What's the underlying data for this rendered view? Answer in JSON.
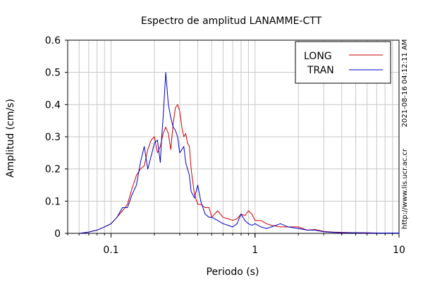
{
  "chart_data": {
    "type": "line",
    "title": "Espectro de amplitud LANAMME-CTT",
    "xlabel": "Periodo (s)",
    "ylabel": "Amplitud (cm/s)",
    "xscale": "log",
    "xlim": [
      0.05,
      10
    ],
    "ylim": [
      0,
      0.6
    ],
    "x_ticks": [
      {
        "value": 0.1,
        "label": "0.1"
      },
      {
        "value": 1,
        "label": "1"
      },
      {
        "value": 10,
        "label": "10"
      }
    ],
    "y_ticks": [
      {
        "value": 0,
        "label": "0"
      },
      {
        "value": 0.1,
        "label": "0.1"
      },
      {
        "value": 0.2,
        "label": "0.2"
      },
      {
        "value": 0.3,
        "label": "0.3"
      },
      {
        "value": 0.4,
        "label": "0.4"
      },
      {
        "value": 0.5,
        "label": "0.5"
      },
      {
        "value": 0.6,
        "label": "0.6"
      }
    ],
    "grid": true,
    "legend_position": "top-right",
    "series": [
      {
        "name": "LONG",
        "color": "#cc0000",
        "x": [
          0.06,
          0.07,
          0.08,
          0.09,
          0.1,
          0.11,
          0.12,
          0.13,
          0.14,
          0.15,
          0.16,
          0.17,
          0.18,
          0.19,
          0.2,
          0.21,
          0.22,
          0.23,
          0.24,
          0.25,
          0.26,
          0.27,
          0.28,
          0.29,
          0.3,
          0.31,
          0.32,
          0.33,
          0.34,
          0.35,
          0.36,
          0.38,
          0.4,
          0.42,
          0.45,
          0.48,
          0.5,
          0.55,
          0.6,
          0.65,
          0.7,
          0.75,
          0.8,
          0.85,
          0.9,
          0.95,
          1.0,
          1.1,
          1.2,
          1.3,
          1.5,
          1.7,
          2.0,
          2.3,
          2.6,
          3.0,
          3.5,
          4.0,
          5.0,
          6.0,
          7.0,
          8.0,
          10.0
        ],
        "y": [
          0.0,
          0.004,
          0.01,
          0.02,
          0.03,
          0.05,
          0.07,
          0.09,
          0.14,
          0.18,
          0.2,
          0.21,
          0.26,
          0.29,
          0.3,
          0.25,
          0.27,
          0.31,
          0.33,
          0.31,
          0.26,
          0.34,
          0.39,
          0.4,
          0.38,
          0.33,
          0.3,
          0.31,
          0.28,
          0.27,
          0.2,
          0.12,
          0.09,
          0.09,
          0.08,
          0.08,
          0.05,
          0.07,
          0.05,
          0.045,
          0.04,
          0.045,
          0.06,
          0.055,
          0.07,
          0.06,
          0.04,
          0.04,
          0.03,
          0.025,
          0.02,
          0.02,
          0.02,
          0.01,
          0.012,
          0.006,
          0.004,
          0.003,
          0.002,
          0.002,
          0.001,
          0.001,
          0.001
        ]
      },
      {
        "name": "TRAN",
        "color": "#0000cc",
        "x": [
          0.06,
          0.07,
          0.08,
          0.09,
          0.1,
          0.11,
          0.12,
          0.13,
          0.14,
          0.15,
          0.16,
          0.17,
          0.18,
          0.19,
          0.2,
          0.21,
          0.22,
          0.225,
          0.23,
          0.24,
          0.25,
          0.26,
          0.27,
          0.28,
          0.29,
          0.3,
          0.31,
          0.32,
          0.33,
          0.34,
          0.35,
          0.36,
          0.38,
          0.4,
          0.42,
          0.45,
          0.48,
          0.5,
          0.55,
          0.6,
          0.65,
          0.7,
          0.75,
          0.8,
          0.85,
          0.9,
          0.95,
          1.0,
          1.1,
          1.2,
          1.3,
          1.5,
          1.7,
          2.0,
          2.3,
          2.6,
          3.0,
          3.5,
          4.0,
          5.0,
          6.0,
          7.0,
          8.0,
          10.0
        ],
        "y": [
          0.0,
          0.004,
          0.01,
          0.02,
          0.03,
          0.05,
          0.08,
          0.08,
          0.12,
          0.15,
          0.22,
          0.27,
          0.2,
          0.24,
          0.28,
          0.29,
          0.22,
          0.3,
          0.36,
          0.5,
          0.4,
          0.36,
          0.33,
          0.32,
          0.3,
          0.25,
          0.26,
          0.27,
          0.22,
          0.2,
          0.18,
          0.13,
          0.11,
          0.15,
          0.1,
          0.06,
          0.05,
          0.05,
          0.04,
          0.03,
          0.025,
          0.02,
          0.03,
          0.06,
          0.04,
          0.03,
          0.025,
          0.03,
          0.02,
          0.015,
          0.02,
          0.03,
          0.02,
          0.015,
          0.01,
          0.01,
          0.005,
          0.003,
          0.002,
          0.002,
          0.001,
          0.001,
          0.001,
          0.001
        ]
      }
    ],
    "side_text": {
      "timestamp": "2021-08-16 04:12:11 AM",
      "url": "http://www.lis.ucr.ac.cr"
    }
  }
}
